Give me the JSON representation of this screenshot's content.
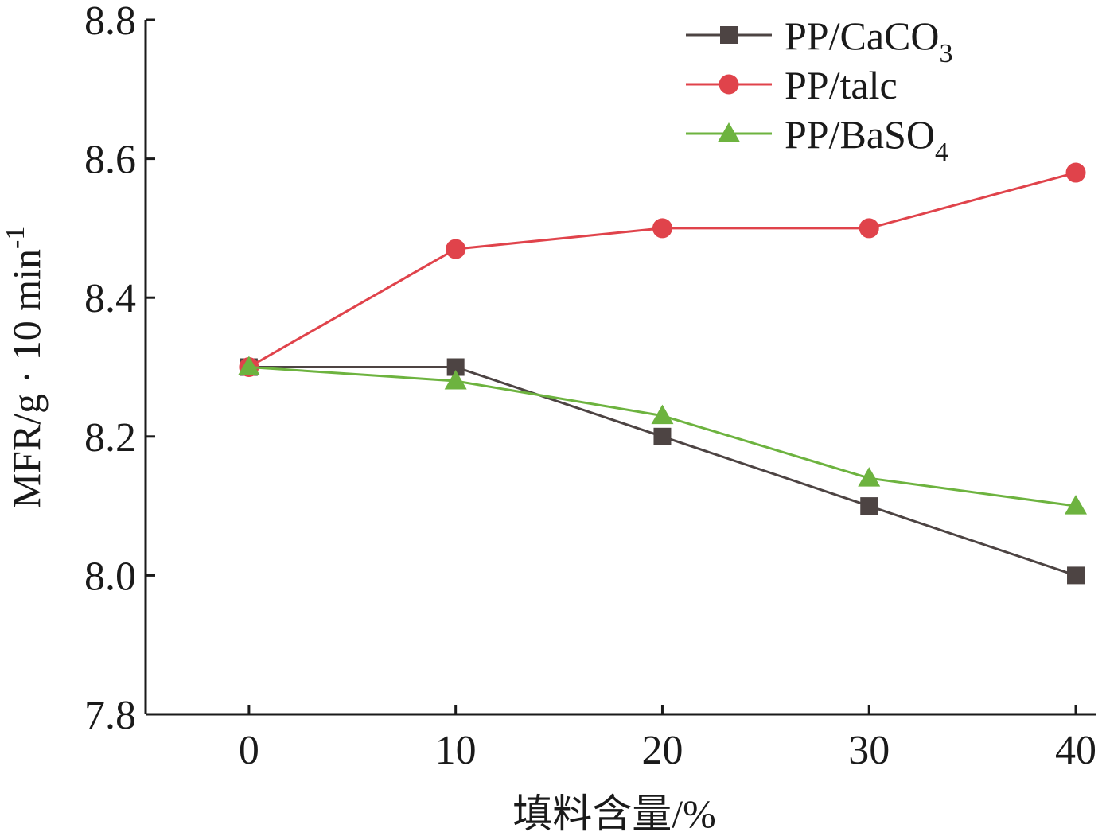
{
  "chart_data": {
    "type": "line",
    "x": [
      0,
      10,
      20,
      30,
      40
    ],
    "xticks": [
      "0",
      "10",
      "20",
      "30",
      "40"
    ],
    "yticks": [
      "7.8",
      "8.0",
      "8.2",
      "8.4",
      "8.6",
      "8.8"
    ],
    "ylim": [
      7.8,
      8.8
    ],
    "xlim": [
      -5,
      41
    ],
    "xlabel": "填料含量/%",
    "ylabel": {
      "main": "MFR/g · 10 min",
      "sup": "-1"
    },
    "grid": false,
    "legend_position": "top-right",
    "series": [
      {
        "name": "PP/CaCO",
        "name_sub": "3",
        "marker": "square",
        "color": "#4d4443",
        "values": [
          8.3,
          8.3,
          8.2,
          8.1,
          8.0
        ]
      },
      {
        "name": "PP/talc",
        "name_sub": "",
        "marker": "circle",
        "color": "#e0434b",
        "values": [
          8.3,
          8.47,
          8.5,
          8.5,
          8.58
        ]
      },
      {
        "name": "PP/BaSO",
        "name_sub": "4",
        "marker": "triangle",
        "color": "#6db33f",
        "values": [
          8.3,
          8.28,
          8.23,
          8.14,
          8.1
        ]
      }
    ]
  }
}
